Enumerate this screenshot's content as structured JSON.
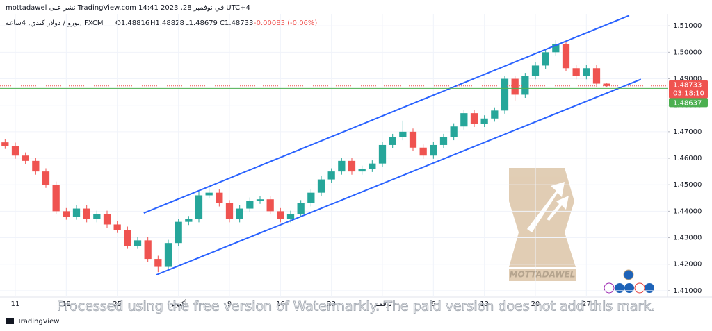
{
  "chart_data": {
    "type": "candlestick",
    "publish_info": "mottadawel نشر على TradingView.com في نوفمبر 28, 2023 14:41 UTC+4",
    "symbol_info": "يورو / دولار كندي, 4ساعة, FXCM",
    "ohlc_legend": [
      "O1.48816",
      "H1.48828",
      "L1.48679",
      "C1.48733",
      "-0.00083 (-0.06%)"
    ],
    "categories": [
      null,
      "11",
      null,
      null,
      null,
      null,
      "18",
      null,
      null,
      null,
      null,
      "25",
      null,
      null,
      null,
      null,
      null,
      "أكتوبر",
      null,
      null,
      null,
      null,
      "9",
      null,
      null,
      null,
      null,
      "16",
      null,
      null,
      null,
      null,
      "23",
      null,
      null,
      null,
      null,
      "نوفمبر",
      null,
      null,
      null,
      null,
      "6",
      null,
      null,
      null,
      null,
      "13",
      null,
      null,
      null,
      null,
      "20",
      null,
      null,
      null,
      null,
      "27",
      null,
      null
    ],
    "open": [
      1.466,
      1.4647,
      1.461,
      1.459,
      1.455,
      1.45,
      1.44,
      1.438,
      1.441,
      1.437,
      1.439,
      1.435,
      1.433,
      1.427,
      1.429,
      1.422,
      1.419,
      1.428,
      1.436,
      1.437,
      1.446,
      1.447,
      1.443,
      1.437,
      1.441,
      1.444,
      1.4445,
      1.44,
      1.437,
      1.439,
      1.443,
      1.447,
      1.452,
      1.455,
      1.459,
      1.455,
      1.456,
      1.458,
      1.465,
      1.468,
      1.47,
      1.464,
      1.461,
      1.465,
      1.468,
      1.472,
      1.477,
      1.473,
      1.475,
      1.478,
      1.49,
      1.484,
      1.491,
      1.495,
      1.5,
      1.503,
      1.494,
      1.491,
      1.494,
      1.48816
    ],
    "high": [
      1.4672,
      1.4659,
      1.4622,
      1.4602,
      1.4562,
      1.4512,
      1.4412,
      1.4422,
      1.4422,
      1.4402,
      1.4402,
      1.4362,
      1.4342,
      1.4302,
      1.4302,
      1.4232,
      1.4292,
      1.4372,
      1.4382,
      1.4472,
      1.449,
      1.4482,
      1.4442,
      1.4422,
      1.4452,
      1.4457,
      1.4457,
      1.4412,
      1.4402,
      1.4442,
      1.4482,
      1.4532,
      1.4562,
      1.4602,
      1.4602,
      1.4572,
      1.4592,
      1.4662,
      1.4692,
      1.4742,
      1.4712,
      1.4652,
      1.4662,
      1.4692,
      1.4732,
      1.4782,
      1.4782,
      1.4762,
      1.4792,
      1.4912,
      1.4912,
      1.4922,
      1.4962,
      1.5012,
      1.5045,
      1.5042,
      1.4952,
      1.4952,
      1.4952,
      1.48828
    ],
    "low": [
      1.4635,
      1.4598,
      1.4578,
      1.4538,
      1.4488,
      1.4388,
      1.4368,
      1.4368,
      1.4358,
      1.4358,
      1.4338,
      1.4318,
      1.4258,
      1.4258,
      1.4208,
      1.417,
      1.4178,
      1.4268,
      1.4348,
      1.4358,
      1.4448,
      1.4418,
      1.4358,
      1.4358,
      1.4398,
      1.4428,
      1.4388,
      1.4358,
      1.4358,
      1.4378,
      1.4418,
      1.4458,
      1.4508,
      1.4538,
      1.4538,
      1.4538,
      1.4548,
      1.4568,
      1.4638,
      1.4668,
      1.4628,
      1.4598,
      1.4598,
      1.4638,
      1.4668,
      1.4708,
      1.4718,
      1.4718,
      1.4738,
      1.4768,
      1.4818,
      1.4828,
      1.4898,
      1.4938,
      1.4988,
      1.4928,
      1.4898,
      1.4898,
      1.487,
      1.48679
    ],
    "close": [
      1.4647,
      1.461,
      1.459,
      1.455,
      1.45,
      1.44,
      1.438,
      1.441,
      1.437,
      1.439,
      1.435,
      1.433,
      1.427,
      1.429,
      1.422,
      1.419,
      1.428,
      1.436,
      1.437,
      1.446,
      1.447,
      1.443,
      1.437,
      1.441,
      1.444,
      1.4445,
      1.44,
      1.437,
      1.439,
      1.443,
      1.447,
      1.452,
      1.455,
      1.459,
      1.455,
      1.456,
      1.458,
      1.465,
      1.468,
      1.47,
      1.464,
      1.461,
      1.465,
      1.468,
      1.472,
      1.477,
      1.473,
      1.475,
      1.478,
      1.49,
      1.484,
      1.491,
      1.495,
      1.5,
      1.503,
      1.494,
      1.491,
      1.494,
      1.48816,
      1.48733
    ],
    "up_color": "#26a69a",
    "down_color": "#ef5350",
    "ylim": [
      1.4084,
      1.5145
    ],
    "yticks": [
      {
        "value": 1.41,
        "label": "1.41000"
      },
      {
        "value": 1.42,
        "label": "1.42000"
      },
      {
        "value": 1.43,
        "label": "1.43000"
      },
      {
        "value": 1.44,
        "label": "1.44000"
      },
      {
        "value": 1.45,
        "label": "1.45000"
      },
      {
        "value": 1.46,
        "label": "1.46000"
      },
      {
        "value": 1.47,
        "label": "1.47000"
      },
      {
        "value": 1.48,
        "label": "1.48000"
      },
      {
        "value": 1.49,
        "label": "1.49000"
      },
      {
        "value": 1.5,
        "label": "1.50000"
      },
      {
        "value": 1.51,
        "label": "1.51000"
      }
    ],
    "grid": true,
    "trendlines": [
      {
        "color": "#2962ff",
        "x": [
          13.6,
          61.2
        ],
        "y": [
          1.4393,
          1.5139
        ]
      },
      {
        "color": "#2962ff",
        "x": [
          14.84,
          62.35
        ],
        "y": [
          1.416,
          1.4898
        ]
      }
    ],
    "last_price_label": "1.48733",
    "countdown": "03:18:10",
    "level": {
      "value": 1.48637,
      "label": "1.48637",
      "color": "#4caf50"
    },
    "logo_text": "MOTTADAWEL",
    "watermark": "Processed using the free version of Watermarkly. The paid version does not add this mark.",
    "footer": "TradingView"
  }
}
